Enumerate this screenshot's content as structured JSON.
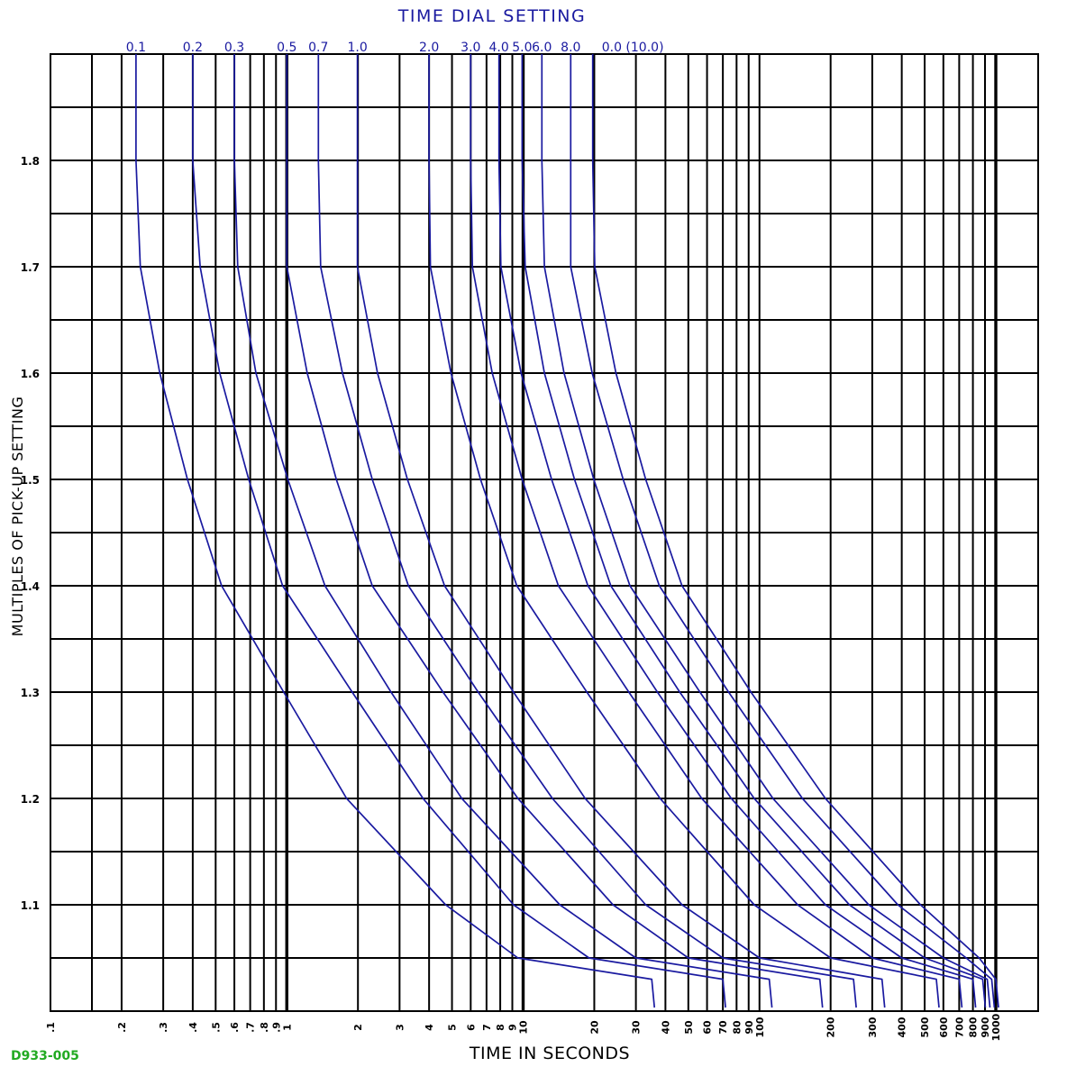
{
  "drawing_id": "D933-005",
  "colors": {
    "grid": "#000000",
    "curves": "#1a1aa0",
    "drawing_id": "#22aa22"
  },
  "chart_data": {
    "type": "line",
    "title": "TIME DIAL SETTING",
    "xlabel": "TIME IN SECONDS",
    "ylabel": "MULTIPLES OF PICK-UP SETTING",
    "x_scale": "log",
    "xlim": [
      0.1,
      1000
    ],
    "ylim": [
      1.0,
      1.9
    ],
    "grid": true,
    "x_ticks": [
      0.1,
      0.2,
      0.3,
      0.4,
      0.5,
      0.6,
      0.7,
      0.8,
      0.9,
      1,
      2,
      3,
      4,
      5,
      6,
      7,
      8,
      9,
      10,
      20,
      30,
      40,
      50,
      60,
      70,
      80,
      90,
      100,
      200,
      300,
      400,
      500,
      600,
      700,
      800,
      900,
      1000
    ],
    "x_tick_labels": [
      ".1",
      ".2",
      ".3",
      ".4",
      ".5",
      ".6",
      ".7",
      ".8",
      ".9",
      "1",
      "2",
      "3",
      "4",
      "5",
      "6",
      "7",
      "8",
      "9",
      "10",
      "20",
      "30",
      "40",
      "50",
      "60",
      "70",
      "80",
      "90",
      "100",
      "200",
      "300",
      "400",
      "500",
      "600",
      "700",
      "800",
      "900",
      "1000"
    ],
    "y_ticks": [
      1.1,
      1.2,
      1.3,
      1.4,
      1.5,
      1.6,
      1.7,
      1.8
    ],
    "y_tick_labels": [
      "1.1",
      "1.2",
      "1.3",
      "1.4",
      "1.5",
      "1.6",
      "1.7",
      "1.8"
    ],
    "y": [
      1.9,
      1.8,
      1.7,
      1.6,
      1.5,
      1.4,
      1.3,
      1.2,
      1.1,
      1.05,
      1.03
    ],
    "series": [
      {
        "name": "0.1",
        "x": [
          0.23,
          0.23,
          0.24,
          0.29,
          0.38,
          0.53,
          0.97,
          1.79,
          4.7,
          9.5,
          35
        ]
      },
      {
        "name": "0.2",
        "x": [
          0.4,
          0.4,
          0.43,
          0.52,
          0.69,
          0.96,
          1.89,
          3.77,
          9.1,
          19,
          70
        ]
      },
      {
        "name": "0.3",
        "x": [
          0.6,
          0.6,
          0.62,
          0.74,
          1.01,
          1.45,
          2.76,
          5.5,
          14.3,
          30,
          110
        ]
      },
      {
        "name": "0.5",
        "x": [
          1.0,
          1.0,
          1.0,
          1.22,
          1.62,
          2.3,
          4.58,
          9.5,
          24,
          50,
          180
        ]
      },
      {
        "name": "0.7",
        "x": [
          1.36,
          1.36,
          1.39,
          1.72,
          2.3,
          3.27,
          6.45,
          13.3,
          33,
          70,
          250
        ]
      },
      {
        "name": "1.0",
        "x": [
          1.99,
          1.99,
          1.99,
          2.42,
          3.24,
          4.65,
          9.1,
          18.3,
          47,
          100,
          330
        ]
      },
      {
        "name": "2.0",
        "x": [
          4.0,
          4.0,
          4.05,
          4.95,
          6.6,
          9.4,
          18.6,
          38,
          95,
          200,
          560
        ]
      },
      {
        "name": "3.0",
        "x": [
          6.0,
          6.0,
          6.1,
          7.4,
          9.9,
          14.1,
          28,
          57,
          145,
          300,
          700
        ]
      },
      {
        "name": "4.0",
        "x": [
          7.9,
          7.9,
          8.05,
          9.8,
          13.2,
          18.8,
          37,
          76,
          190,
          400,
          800
        ]
      },
      {
        "name": "5.0",
        "x": [
          9.9,
          9.9,
          10.2,
          12.3,
          16.5,
          23.5,
          46,
          95,
          240,
          500,
          880
        ]
      },
      {
        "name": "6.0",
        "x": [
          12.0,
          12.0,
          12.3,
          14.9,
          19.9,
          28.3,
          56,
          114,
          290,
          600,
          920
        ]
      },
      {
        "name": "8.0",
        "x": [
          15.9,
          15.9,
          15.9,
          19.6,
          26.5,
          37.7,
          74,
          152,
          385,
          750,
          960
        ]
      },
      {
        "name": "0.0 (10.0)",
        "x": [
          19.7,
          19.7,
          20.1,
          24.7,
          33.0,
          47.0,
          92,
          190,
          480,
          850,
          1000
        ]
      }
    ]
  }
}
